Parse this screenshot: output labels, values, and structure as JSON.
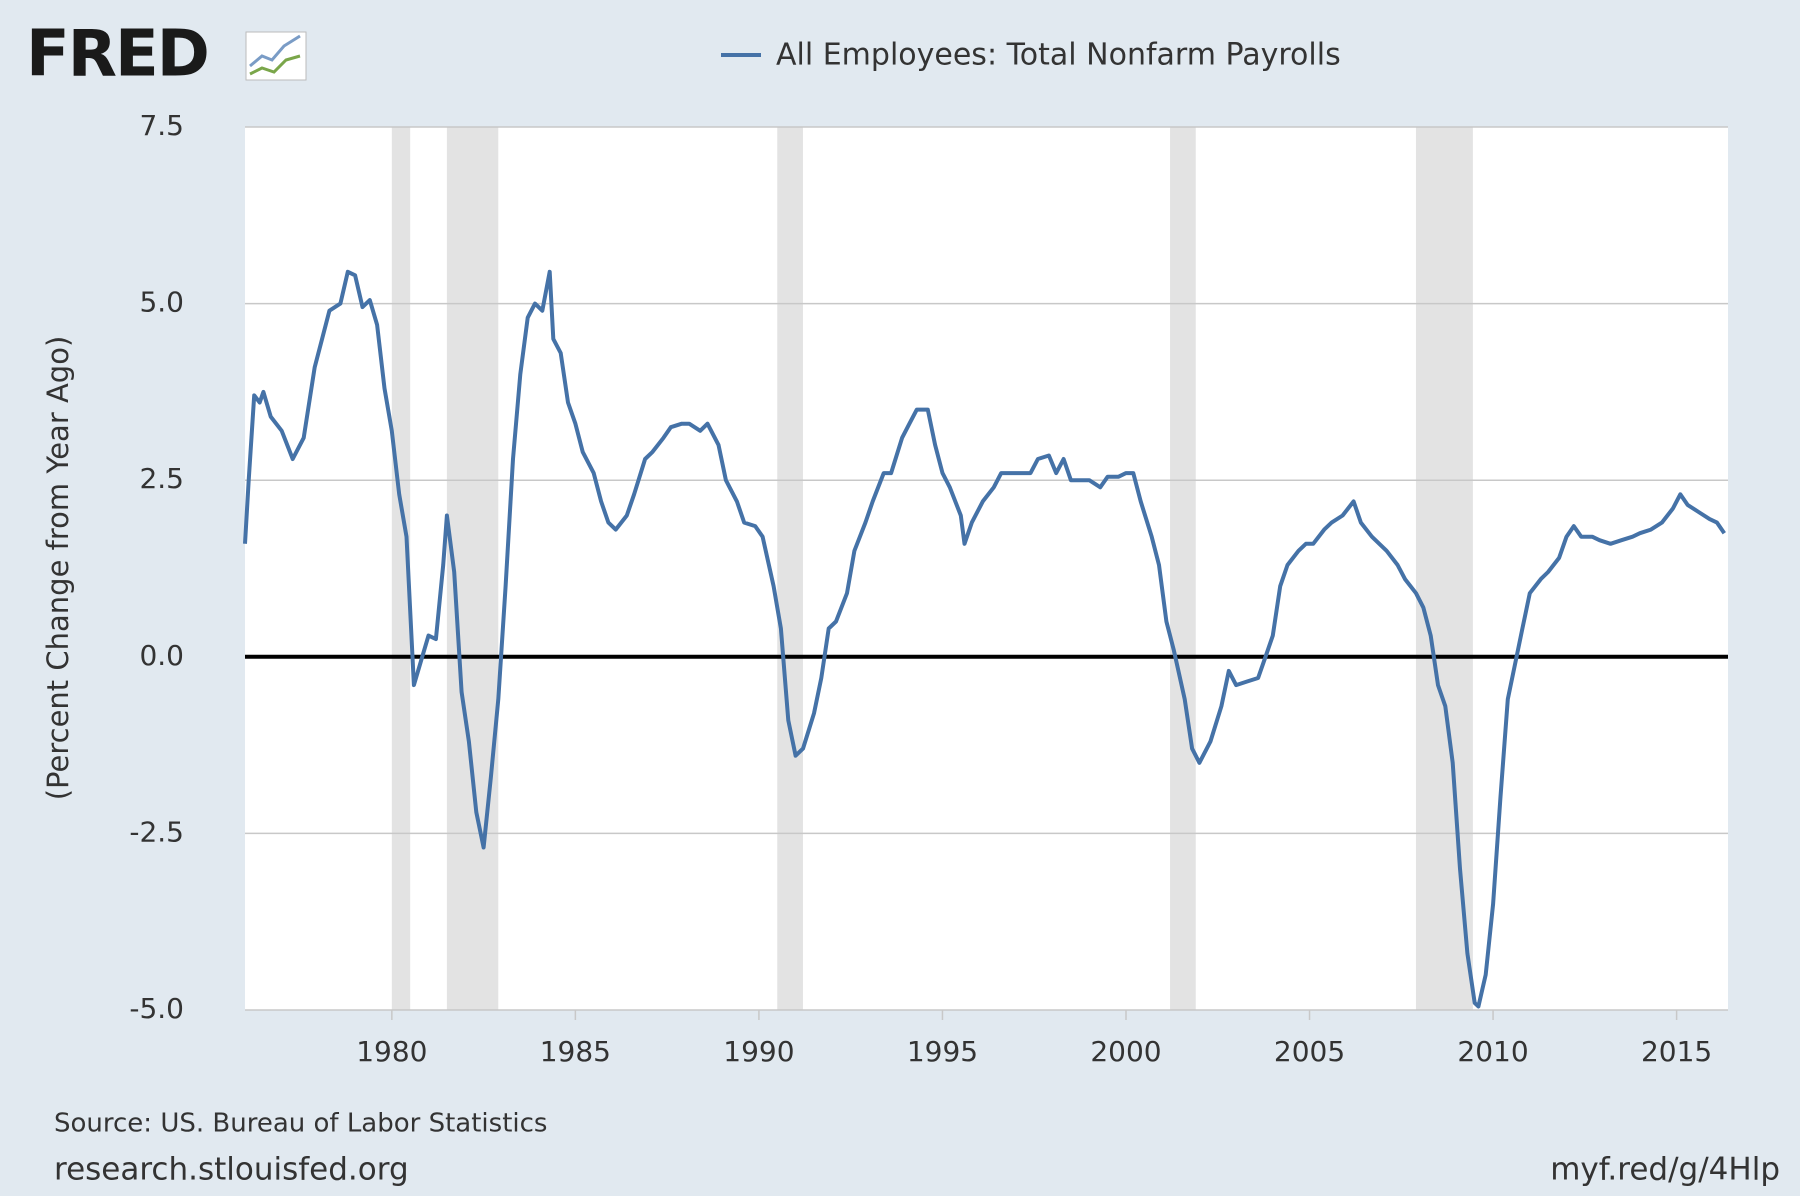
{
  "logo": "FRED",
  "chart_data": {
    "type": "line",
    "y_label": "(Percent Change from Year Ago)",
    "source": "Source: US. Bureau of Labor Statistics",
    "site": "research.stlouisfed.org",
    "short_url": "myf.red/g/4Hlp",
    "xlim": [
      1976,
      2016.4
    ],
    "xticks": [
      1980,
      1985,
      1990,
      1995,
      2000,
      2005,
      2010,
      2015
    ],
    "ylim": [
      -5,
      7.5
    ],
    "yticks": [
      {
        "value": -5,
        "label": "-5.0"
      },
      -2.5,
      {
        "value": 0,
        "label": "0.0"
      },
      2.5,
      {
        "value": 5,
        "label": "5.0"
      },
      7.5
    ],
    "grid": true,
    "recession_color": "#e3e3e3",
    "recessions": [
      [
        1980.0,
        1980.5
      ],
      [
        1981.5,
        1982.9
      ],
      [
        1990.5,
        1991.2
      ],
      [
        2001.2,
        2001.9
      ],
      [
        2007.9,
        2009.45
      ]
    ],
    "x": [
      1976.0,
      1976.1,
      1976.25,
      1976.4,
      1976.5,
      1976.7,
      1977.0,
      1977.3,
      1977.6,
      1977.9,
      1978.1,
      1978.3,
      1978.6,
      1978.8,
      1979.0,
      1979.2,
      1979.4,
      1979.6,
      1979.8,
      1980.0,
      1980.2,
      1980.4,
      1980.6,
      1980.8,
      1981.0,
      1981.2,
      1981.4,
      1981.5,
      1981.7,
      1981.9,
      1982.1,
      1982.3,
      1982.5,
      1982.7,
      1982.9,
      1983.1,
      1983.3,
      1983.5,
      1983.7,
      1983.9,
      1984.1,
      1984.3,
      1984.4,
      1984.6,
      1984.8,
      1985.0,
      1985.2,
      1985.5,
      1985.7,
      1985.9,
      1986.1,
      1986.4,
      1986.6,
      1986.9,
      1987.1,
      1987.4,
      1987.6,
      1987.9,
      1988.1,
      1988.4,
      1988.6,
      1988.9,
      1989.1,
      1989.4,
      1989.6,
      1989.9,
      1990.1,
      1990.4,
      1990.6,
      1990.8,
      1991.0,
      1991.2,
      1991.5,
      1991.7,
      1991.9,
      1992.1,
      1992.4,
      1992.6,
      1992.9,
      1993.1,
      1993.4,
      1993.6,
      1993.9,
      1994.1,
      1994.3,
      1994.6,
      1994.8,
      1995.0,
      1995.2,
      1995.5,
      1995.6,
      1995.8,
      1996.1,
      1996.4,
      1996.6,
      1996.9,
      1997.1,
      1997.4,
      1997.6,
      1997.9,
      1998.1,
      1998.3,
      1998.5,
      1998.8,
      1999.0,
      1999.3,
      1999.5,
      1999.8,
      2000.0,
      2000.2,
      2000.4,
      2000.7,
      2000.9,
      2001.1,
      2001.3,
      2001.6,
      2001.8,
      2002.0,
      2002.3,
      2002.6,
      2002.8,
      2003.0,
      2003.3,
      2003.6,
      2003.8,
      2004.0,
      2004.2,
      2004.4,
      2004.7,
      2004.9,
      2005.1,
      2005.4,
      2005.6,
      2005.9,
      2006.2,
      2006.4,
      2006.7,
      2006.9,
      2007.1,
      2007.4,
      2007.6,
      2007.9,
      2008.1,
      2008.3,
      2008.5,
      2008.7,
      2008.9,
      2009.1,
      2009.3,
      2009.5,
      2009.6,
      2009.8,
      2010.0,
      2010.2,
      2010.4,
      2010.6,
      2010.8,
      2011.0,
      2011.3,
      2011.5,
      2011.8,
      2012.0,
      2012.2,
      2012.4,
      2012.7,
      2012.9,
      2013.2,
      2013.5,
      2013.8,
      2014.0,
      2014.3,
      2014.6,
      2014.9,
      2015.1,
      2015.3,
      2015.6,
      2015.9,
      2016.1,
      2016.3
    ],
    "series": [
      {
        "name": "All Employees: Total Nonfarm Payrolls",
        "color": "#4572a7",
        "values": [
          1.6,
          2.5,
          3.7,
          3.6,
          3.75,
          3.4,
          3.2,
          2.8,
          3.1,
          4.1,
          4.5,
          4.9,
          5.0,
          5.45,
          5.4,
          4.95,
          5.05,
          4.7,
          3.8,
          3.2,
          2.3,
          1.7,
          -0.4,
          -0.05,
          0.3,
          0.25,
          1.3,
          2.0,
          1.2,
          -0.5,
          -1.2,
          -2.2,
          -2.7,
          -1.7,
          -0.6,
          1.0,
          2.8,
          4.0,
          4.8,
          5.0,
          4.9,
          5.45,
          4.5,
          4.3,
          3.6,
          3.3,
          2.9,
          2.6,
          2.2,
          1.9,
          1.8,
          2.0,
          2.3,
          2.8,
          2.9,
          3.1,
          3.25,
          3.3,
          3.3,
          3.2,
          3.3,
          3.0,
          2.5,
          2.2,
          1.9,
          1.85,
          1.7,
          1.0,
          0.4,
          -0.9,
          -1.4,
          -1.3,
          -0.8,
          -0.3,
          0.4,
          0.5,
          0.9,
          1.5,
          1.9,
          2.2,
          2.6,
          2.6,
          3.1,
          3.3,
          3.5,
          3.5,
          3.0,
          2.6,
          2.4,
          2.0,
          1.6,
          1.9,
          2.2,
          2.4,
          2.6,
          2.6,
          2.6,
          2.6,
          2.8,
          2.85,
          2.6,
          2.8,
          2.5,
          2.5,
          2.5,
          2.4,
          2.55,
          2.55,
          2.6,
          2.6,
          2.2,
          1.7,
          1.3,
          0.5,
          0.1,
          -0.6,
          -1.3,
          -1.5,
          -1.2,
          -0.7,
          -0.2,
          -0.4,
          -0.35,
          -0.3,
          0.0,
          0.3,
          1.0,
          1.3,
          1.5,
          1.6,
          1.6,
          1.8,
          1.9,
          2.0,
          2.2,
          1.9,
          1.7,
          1.6,
          1.5,
          1.3,
          1.1,
          0.9,
          0.7,
          0.3,
          -0.4,
          -0.7,
          -1.5,
          -3.0,
          -4.2,
          -4.9,
          -4.95,
          -4.5,
          -3.5,
          -2.0,
          -0.6,
          -0.1,
          0.4,
          0.9,
          1.1,
          1.2,
          1.4,
          1.7,
          1.85,
          1.7,
          1.7,
          1.65,
          1.6,
          1.65,
          1.7,
          1.75,
          1.8,
          1.9,
          2.1,
          2.3,
          2.15,
          2.05,
          1.95,
          1.9,
          1.75
        ]
      }
    ]
  }
}
